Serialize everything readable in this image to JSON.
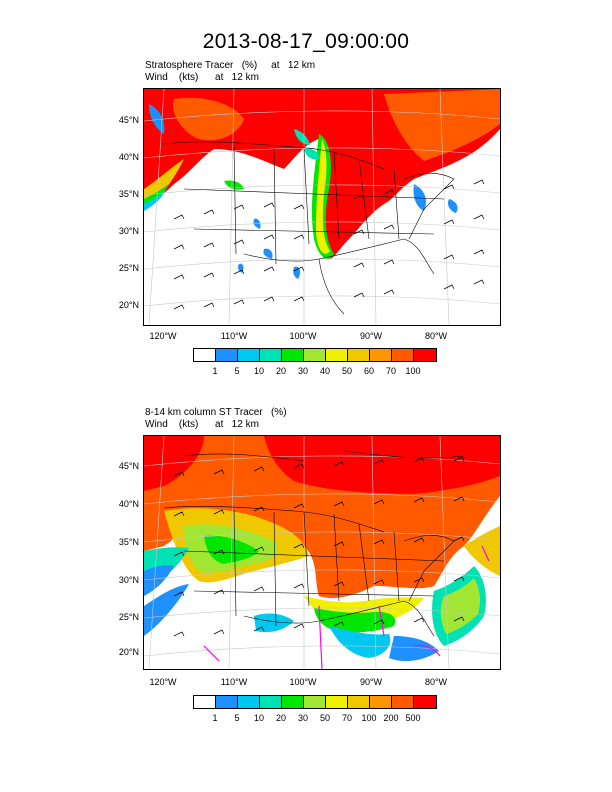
{
  "title": "2013-08-17_09:00:00",
  "panels": [
    {
      "title_line1": "Stratosphere Tracer   (%)     at   12 km",
      "title_line2": "Wind    (kts)      at   12 km",
      "lat_ticks": [
        "45°N",
        "40°N",
        "35°N",
        "30°N",
        "25°N",
        "20°N"
      ],
      "lon_ticks": [
        "120°W",
        "110°W",
        "100°W",
        "90°W",
        "80°W"
      ],
      "colorbar": {
        "colors": [
          "#ffffff",
          "#1e90ff",
          "#00c8f0",
          "#00e1b4",
          "#00e600",
          "#a0e632",
          "#f0f000",
          "#f0c800",
          "#ff9600",
          "#ff5a00",
          "#ff0000"
        ],
        "labels": [
          "1",
          "5",
          "10",
          "20",
          "30",
          "40",
          "50",
          "60",
          "70",
          "100"
        ]
      }
    },
    {
      "title_line1": "8-14 km column ST Tracer   (%)",
      "title_line2": "Wind    (kts)      at   12 km",
      "lat_ticks": [
        "45°N",
        "40°N",
        "35°N",
        "30°N",
        "25°N",
        "20°N"
      ],
      "lon_ticks": [
        "120°W",
        "110°W",
        "100°W",
        "90°W",
        "80°W"
      ],
      "colorbar": {
        "colors": [
          "#ffffff",
          "#1e90ff",
          "#00c8f0",
          "#00e1b4",
          "#00e600",
          "#a0e632",
          "#f0f000",
          "#f0c800",
          "#ff9600",
          "#ff5a00",
          "#ff0000"
        ],
        "labels": [
          "1",
          "5",
          "10",
          "20",
          "30",
          "50",
          "70",
          "100",
          "200",
          "500"
        ]
      }
    }
  ]
}
